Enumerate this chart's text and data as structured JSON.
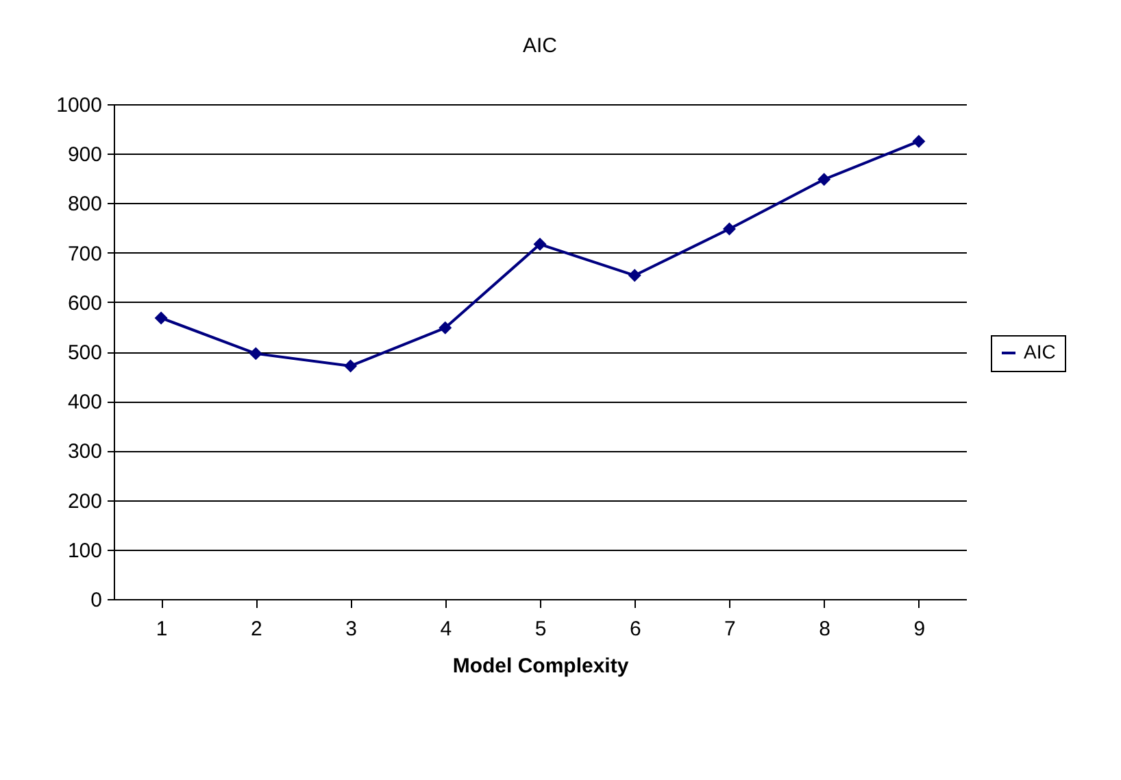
{
  "chart_data": {
    "type": "line",
    "title": "AIC",
    "xlabel": "Model Complexity",
    "categories": [
      "1",
      "2",
      "3",
      "4",
      "5",
      "6",
      "7",
      "8",
      "9"
    ],
    "series": [
      {
        "name": "AIC",
        "color": "#000080",
        "values": [
          568,
          496,
          471,
          548,
          717,
          654,
          748,
          848,
          925
        ]
      }
    ],
    "ylim": [
      0,
      1000
    ],
    "yticks": [
      0,
      100,
      200,
      300,
      400,
      500,
      600,
      700,
      800,
      900,
      1000
    ],
    "grid": "y",
    "legend": "right",
    "marker": "diamond",
    "line_style": "solid"
  }
}
